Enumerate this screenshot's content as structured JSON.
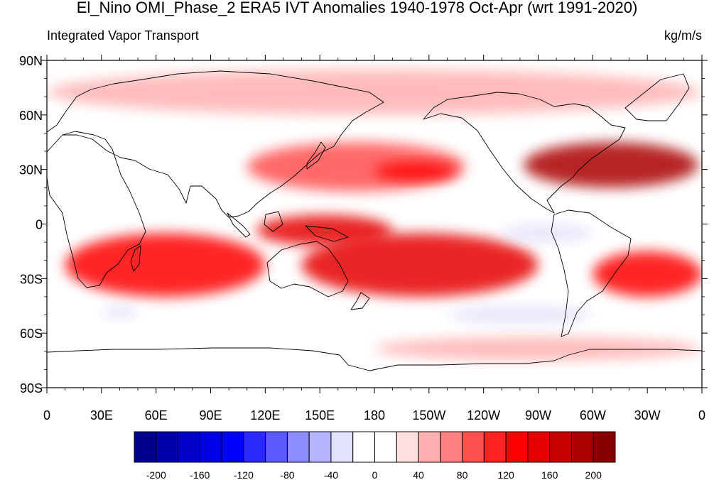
{
  "title": "El_Nino OMI_Phase_2 ERA5 IVT Anomalies 1940-1978 Oct-Apr (wrt 1991-2020)",
  "left_subtitle": "Integrated Vapor Transport",
  "right_subtitle": "kg/m/s",
  "map": {
    "projection": "cylindrical-equidistant",
    "lon_range": [
      0,
      360
    ],
    "lat_range": [
      -90,
      90
    ],
    "lat_ticks": [
      {
        "value": 90,
        "label": "90N"
      },
      {
        "value": 60,
        "label": "60N"
      },
      {
        "value": 30,
        "label": "30N"
      },
      {
        "value": 0,
        "label": "0"
      },
      {
        "value": -30,
        "label": "30S"
      },
      {
        "value": -60,
        "label": "60S"
      },
      {
        "value": -90,
        "label": "90S"
      }
    ],
    "lon_ticks": [
      {
        "value": 0,
        "label": "0"
      },
      {
        "value": 30,
        "label": "30E"
      },
      {
        "value": 60,
        "label": "60E"
      },
      {
        "value": 90,
        "label": "90E"
      },
      {
        "value": 120,
        "label": "120E"
      },
      {
        "value": 150,
        "label": "150E"
      },
      {
        "value": 180,
        "label": "180"
      },
      {
        "value": 210,
        "label": "150W"
      },
      {
        "value": 240,
        "label": "120W"
      },
      {
        "value": 270,
        "label": "90W"
      },
      {
        "value": 300,
        "label": "60W"
      },
      {
        "value": 330,
        "label": "30W"
      },
      {
        "value": 360,
        "label": "0"
      }
    ]
  },
  "colorbar": {
    "colors": [
      "#00008f",
      "#0000a8",
      "#0000c8",
      "#0000e4",
      "#0000ff",
      "#2a2aff",
      "#5a5aff",
      "#8c8cff",
      "#b4b4ff",
      "#e2e2fa",
      "#ffffff",
      "#ffffff",
      "#ffdede",
      "#ffb0b0",
      "#ff8282",
      "#ff5050",
      "#ff2222",
      "#ff0000",
      "#e60000",
      "#c80000",
      "#aa0000",
      "#880000"
    ],
    "labels": [
      {
        "boundary": 1,
        "text": "-200"
      },
      {
        "boundary": 3,
        "text": "-160"
      },
      {
        "boundary": 5,
        "text": "-120"
      },
      {
        "boundary": 7,
        "text": "-80"
      },
      {
        "boundary": 9,
        "text": "-40"
      },
      {
        "boundary": 11,
        "text": "0"
      },
      {
        "boundary": 13,
        "text": "40"
      },
      {
        "boundary": 15,
        "text": "80"
      },
      {
        "boundary": 17,
        "text": "120"
      },
      {
        "boundary": 19,
        "text": "160"
      },
      {
        "boundary": 21,
        "text": "200"
      }
    ]
  },
  "anomaly_fields": [
    {
      "region": "north-atlantic-storm-track",
      "lon": [
        262,
        358
      ],
      "lat": [
        20,
        45
      ],
      "level": 180
    },
    {
      "region": "north-pacific-storm-track",
      "lon": [
        110,
        230
      ],
      "lat": [
        18,
        45
      ],
      "level": 80
    },
    {
      "region": "north-pacific-core",
      "lon": [
        180,
        225
      ],
      "lat": [
        24,
        34
      ],
      "level": 120
    },
    {
      "region": "west-pacific-equatorial",
      "lon": [
        115,
        190
      ],
      "lat": [
        -12,
        5
      ],
      "level": 150
    },
    {
      "region": "south-pacific-convergence-zone",
      "lon": [
        140,
        270
      ],
      "lat": [
        -40,
        -5
      ],
      "level": 140
    },
    {
      "region": "south-indian-ocean",
      "lon": [
        10,
        120
      ],
      "lat": [
        -40,
        -5
      ],
      "level": 130
    },
    {
      "region": "south-atlantic",
      "lon": [
        300,
        360
      ],
      "lat": [
        -40,
        -15
      ],
      "level": 120
    },
    {
      "region": "southern-ocean",
      "lon": [
        180,
        360
      ],
      "lat": [
        -75,
        -62
      ],
      "level": 40
    },
    {
      "region": "arctic",
      "lon": [
        0,
        360
      ],
      "lat": [
        60,
        85
      ],
      "level": 40
    },
    {
      "region": "east-pacific-equatorial",
      "lon": [
        250,
        300
      ],
      "lat": [
        -10,
        0
      ],
      "level": -40
    },
    {
      "region": "south-west-indian",
      "lon": [
        30,
        50
      ],
      "lat": [
        -52,
        -45
      ],
      "level": -40
    },
    {
      "region": "south-pacific-high",
      "lon": [
        220,
        300
      ],
      "lat": [
        -55,
        -45
      ],
      "level": -30
    }
  ]
}
